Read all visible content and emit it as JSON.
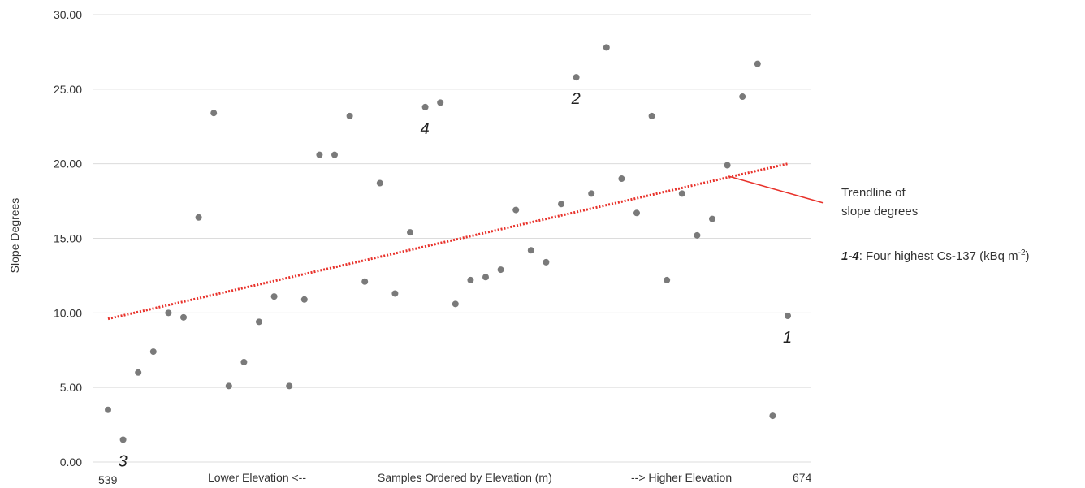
{
  "chart_data": {
    "type": "scatter",
    "ylabel": "Slope Degrees",
    "xlabel": "Samples Ordered by Elevation (m)",
    "x_left_note": "Lower Elevation <--",
    "x_right_note": "--> Higher Elevation",
    "x_start_label": "539",
    "x_end_label": "674",
    "ylim": [
      0,
      30
    ],
    "yticks": [
      "0.00",
      "5.00",
      "10.00",
      "15.00",
      "20.00",
      "25.00",
      "30.00"
    ],
    "grid": true,
    "y": [
      3.5,
      1.5,
      6.0,
      7.4,
      10.0,
      9.7,
      16.4,
      23.4,
      5.1,
      6.7,
      9.4,
      11.1,
      5.1,
      10.9,
      20.6,
      20.6,
      23.2,
      12.1,
      18.7,
      11.3,
      15.4,
      23.8,
      24.1,
      10.6,
      12.2,
      12.4,
      12.9,
      16.9,
      14.2,
      13.4,
      17.3,
      25.8,
      18.0,
      27.8,
      19.0,
      16.7,
      23.2,
      12.2,
      18.0,
      15.2,
      16.3,
      19.9,
      24.5,
      26.7,
      3.1,
      9.8
    ],
    "trendline": {
      "start": 9.6,
      "end": 20.0,
      "color": "#e8322b"
    },
    "annotations": [
      {
        "label": "1",
        "index": 45
      },
      {
        "label": "2",
        "index": 31
      },
      {
        "label": "3",
        "index": 1
      },
      {
        "label": "4",
        "index": 21
      }
    ],
    "callout": {
      "line1": "Trendline of",
      "line2": "slope degrees",
      "key_label": "1-4",
      "key_text": ": Four highest Cs-137 (kBq m",
      "key_sup": "-2",
      "key_close": ")"
    }
  }
}
